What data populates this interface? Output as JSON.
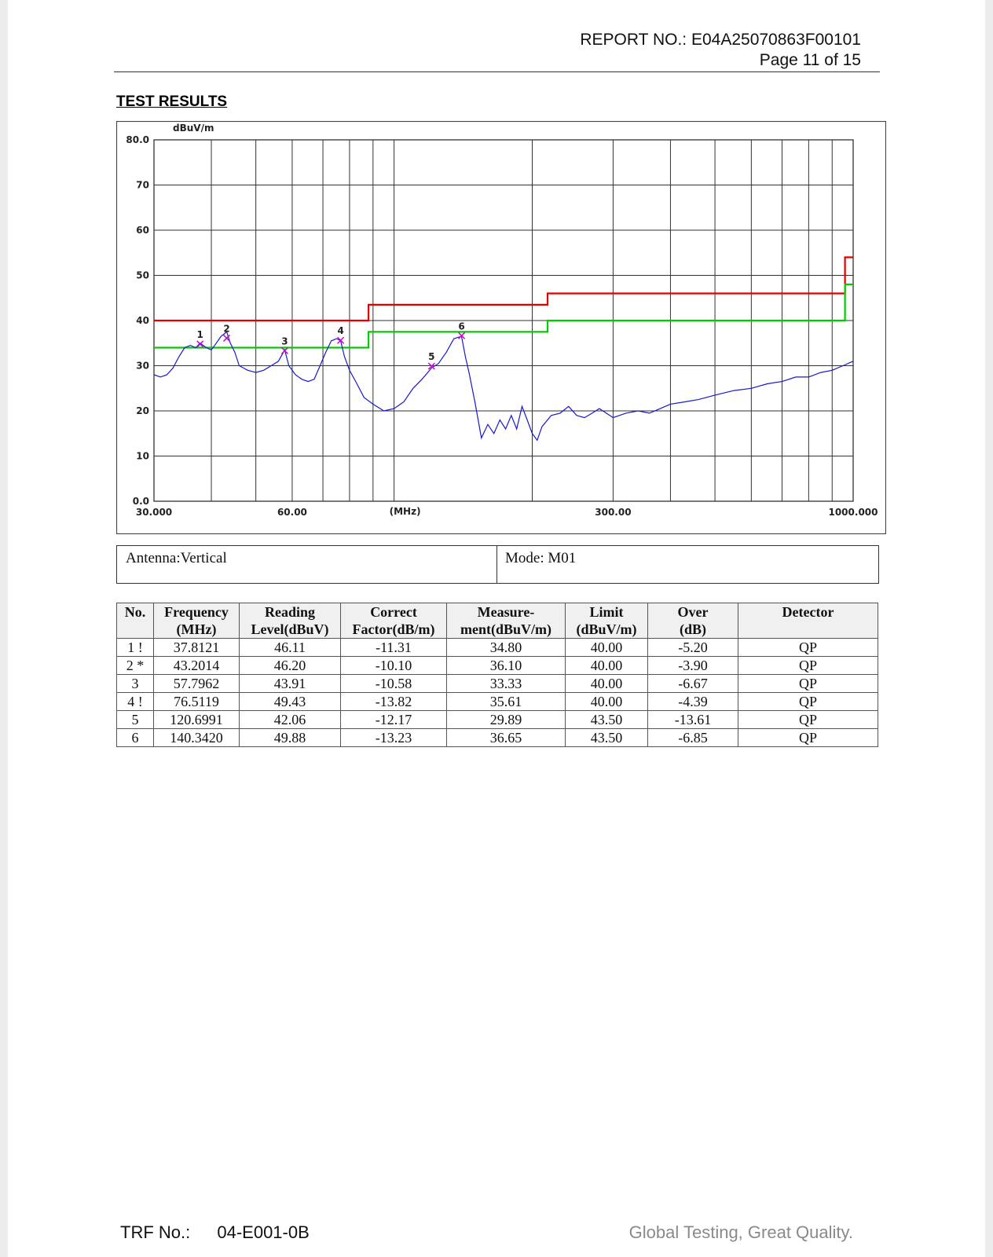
{
  "header": {
    "report_no": "REPORT NO.: E04A25070863F00101",
    "page": "Page 11 of 15"
  },
  "section_title": "TEST RESULTS",
  "chart_data": {
    "type": "line",
    "ylabel": "dBuV/m",
    "xlabel": "(MHz)",
    "x_scale": "log",
    "xlim": [
      30,
      1000
    ],
    "ylim": [
      0,
      80
    ],
    "y_ticks": [
      {
        "v": 80,
        "label": "80.0"
      },
      {
        "v": 70,
        "label": "70"
      },
      {
        "v": 60,
        "label": "60"
      },
      {
        "v": 50,
        "label": "50"
      },
      {
        "v": 40,
        "label": "40"
      },
      {
        "v": 30,
        "label": "30"
      },
      {
        "v": 20,
        "label": "20"
      },
      {
        "v": 10,
        "label": "10"
      },
      {
        "v": 0,
        "label": "0.0"
      }
    ],
    "x_tick_labels": [
      {
        "v": 30,
        "label": "30.000"
      },
      {
        "v": 60,
        "label": "60.00"
      },
      {
        "v": 300,
        "label": "300.00"
      },
      {
        "v": 1000,
        "label": "1000.000"
      }
    ],
    "grid": true,
    "series": [
      {
        "color": "#e00000",
        "x": [
          30,
          88,
          88,
          216,
          216,
          960,
          960,
          1000
        ],
        "y": [
          40,
          40,
          43.5,
          43.5,
          46,
          46,
          54,
          54
        ]
      },
      {
        "color": "#00cc00",
        "x": [
          30,
          88,
          88,
          216,
          216,
          960,
          960,
          1000
        ],
        "y": [
          34,
          34,
          37.5,
          37.5,
          40,
          40,
          48,
          48
        ]
      },
      {
        "color": "#1818cc",
        "x": [
          30,
          31,
          32,
          33,
          34,
          35,
          36,
          37,
          37.8,
          39,
          40,
          41,
          42,
          43.2,
          44,
          45,
          46,
          47,
          48,
          50,
          52,
          54,
          56,
          57.8,
          59,
          61,
          63,
          65,
          67,
          69,
          71,
          73,
          75,
          76.5,
          78,
          80,
          83,
          86,
          90,
          95,
          100,
          105,
          110,
          115,
          120.7,
          125,
          130,
          135,
          140.3,
          143,
          146,
          150,
          155,
          160,
          165,
          170,
          175,
          180,
          185,
          190,
          195,
          200,
          205,
          210,
          220,
          230,
          240,
          250,
          260,
          270,
          280,
          290,
          300,
          320,
          340,
          360,
          380,
          400,
          430,
          460,
          500,
          550,
          600,
          650,
          700,
          750,
          800,
          850,
          900,
          950,
          1000
        ],
        "y": [
          28,
          27.5,
          28,
          29.5,
          32,
          34,
          34.5,
          34,
          35,
          34,
          33.5,
          35,
          36.5,
          37.5,
          35,
          33,
          30,
          29.5,
          29,
          28.5,
          29,
          30,
          31,
          33.5,
          30,
          28,
          27,
          26.5,
          27,
          30,
          33,
          35.5,
          36,
          35.5,
          32,
          29,
          26,
          23,
          21.5,
          20,
          20.5,
          22,
          25,
          27,
          29.5,
          30.5,
          33,
          36,
          36.5,
          32,
          28,
          22,
          14,
          17,
          15,
          18,
          16,
          19,
          16,
          21,
          18,
          15,
          13.5,
          16.5,
          19,
          19.5,
          21,
          19,
          18.5,
          19.5,
          20.5,
          19.5,
          18.5,
          19.5,
          20,
          19.5,
          20.5,
          21.5,
          22,
          22.5,
          23.5,
          24.5,
          25,
          26,
          26.5,
          27.5,
          27.5,
          28.5,
          29,
          30,
          31
        ]
      }
    ],
    "markers": [
      {
        "n": "1",
        "x": 37.8121,
        "y": 34.8
      },
      {
        "n": "2",
        "x": 43.2014,
        "y": 36.1
      },
      {
        "n": "3",
        "x": 57.7962,
        "y": 33.33
      },
      {
        "n": "4",
        "x": 76.5119,
        "y": 35.61
      },
      {
        "n": "5",
        "x": 120.6991,
        "y": 29.89
      },
      {
        "n": "6",
        "x": 140.342,
        "y": 36.65
      }
    ]
  },
  "info": {
    "antenna": "Antenna:Vertical",
    "mode": "Mode: M01"
  },
  "table": {
    "headers": [
      [
        "No.",
        ""
      ],
      [
        "Frequency",
        "(MHz)"
      ],
      [
        "Reading",
        "Level(dBuV)"
      ],
      [
        "Correct",
        "Factor(dB/m)"
      ],
      [
        "Measure-",
        "ment(dBuV/m)"
      ],
      [
        "Limit",
        "(dBuV/m)"
      ],
      [
        "Over",
        "(dB)"
      ],
      [
        "Detector",
        ""
      ]
    ],
    "rows": [
      [
        "1 !",
        "37.8121",
        "46.11",
        "-11.31",
        "34.80",
        "40.00",
        "-5.20",
        "QP"
      ],
      [
        "2 *",
        "43.2014",
        "46.20",
        "-10.10",
        "36.10",
        "40.00",
        "-3.90",
        "QP"
      ],
      [
        "3",
        "57.7962",
        "43.91",
        "-10.58",
        "33.33",
        "40.00",
        "-6.67",
        "QP"
      ],
      [
        "4 !",
        "76.5119",
        "49.43",
        "-13.82",
        "35.61",
        "40.00",
        "-4.39",
        "QP"
      ],
      [
        "5",
        "120.6991",
        "42.06",
        "-12.17",
        "29.89",
        "43.50",
        "-13.61",
        "QP"
      ],
      [
        "6",
        "140.3420",
        "49.88",
        "-13.23",
        "36.65",
        "43.50",
        "-6.85",
        "QP"
      ]
    ]
  },
  "footer": {
    "trf_label": "TRF No.:",
    "trf_value": "04-E001-0B",
    "slogan": "Global Testing, Great Quality."
  }
}
